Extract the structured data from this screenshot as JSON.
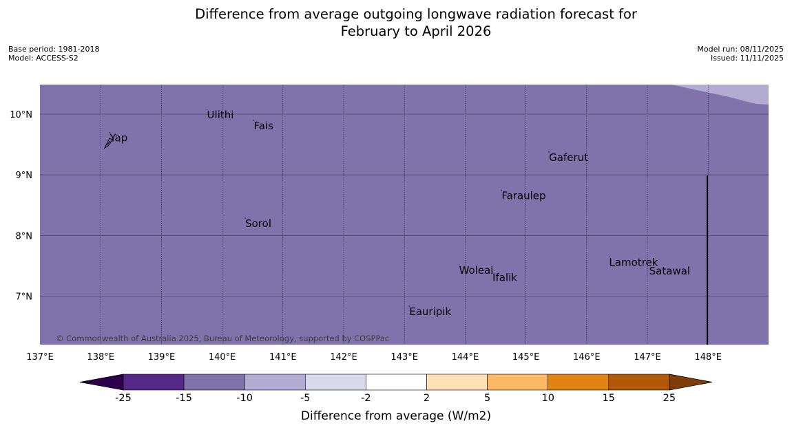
{
  "header": {
    "title_line1": "Difference from average outgoing longwave radiation forecast for",
    "title_line2": "February to April 2026",
    "base_period": "Base period: 1981-2018",
    "model": "Model: ACCESS-S2",
    "model_run": "Model run: 08/11/2025",
    "issued": "Issued: 11/11/2025"
  },
  "map": {
    "lon_range": [
      137,
      149
    ],
    "lat_range": [
      6.2,
      10.5
    ],
    "x_ticks": [
      "137°E",
      "138°E",
      "139°E",
      "140°E",
      "141°E",
      "142°E",
      "143°E",
      "144°E",
      "145°E",
      "146°E",
      "147°E",
      "148°E"
    ],
    "y_ticks": [
      "10°N",
      "9°N",
      "8°N",
      "7°N"
    ],
    "places": [
      {
        "name": "Yap",
        "lon": 138.15,
        "lat": 9.55
      },
      {
        "name": "Ulithi",
        "lon": 139.75,
        "lat": 9.93
      },
      {
        "name": "Fais",
        "lon": 140.52,
        "lat": 9.75
      },
      {
        "name": "Gaferut",
        "lon": 145.38,
        "lat": 9.23
      },
      {
        "name": "Faraulep",
        "lon": 144.6,
        "lat": 8.6
      },
      {
        "name": "Sorol",
        "lon": 140.38,
        "lat": 8.14
      },
      {
        "name": "Woleai",
        "lon": 143.9,
        "lat": 7.37
      },
      {
        "name": "Ifalik",
        "lon": 144.45,
        "lat": 7.25
      },
      {
        "name": "Lamotrek",
        "lon": 146.37,
        "lat": 7.5
      },
      {
        "name": "Satawal",
        "lon": 147.03,
        "lat": 7.36
      },
      {
        "name": "Eauripik",
        "lon": 143.08,
        "lat": 6.69
      }
    ],
    "copyright": "© Commonwealth of Australia 2025, Bureau of Meteorology, supported by COSPPac",
    "base_color": "#8073ac",
    "corner_color": "#b2abd2"
  },
  "legend": {
    "title": "Difference from average (W/m2)",
    "ticks": [
      "-25",
      "-15",
      "-10",
      "-5",
      "-2",
      "2",
      "5",
      "10",
      "15",
      "25"
    ],
    "colors": [
      "#2d004b",
      "#542788",
      "#8073ac",
      "#b2abd2",
      "#d8daeb",
      "#ffffff",
      "#fee0b6",
      "#fdb863",
      "#e08214",
      "#b35806",
      "#7f3b08"
    ]
  }
}
